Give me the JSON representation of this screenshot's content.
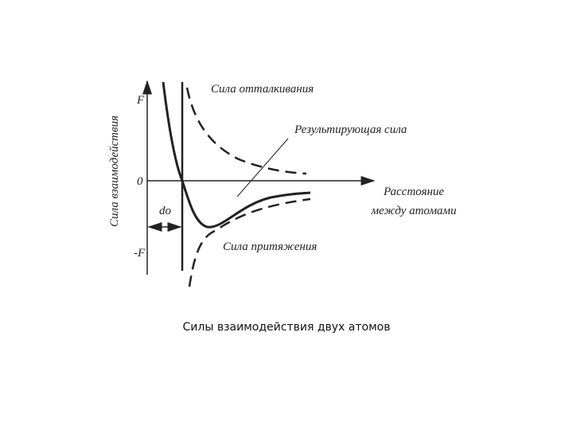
{
  "diagram": {
    "axis_labels": {
      "force_positive": "F",
      "zero": "0",
      "force_negative": "-F",
      "y_axis": "Сила взаимодействия",
      "x_axis_line1": "Расстояние",
      "x_axis_line2": "между атомами"
    },
    "distance_label": "do",
    "curves": {
      "repulsive": "Сила отталкивания",
      "resultant": "Результирующая сила",
      "attractive": "Сила притяжения"
    }
  },
  "caption": "Силы взаимодействия двух атомов"
}
